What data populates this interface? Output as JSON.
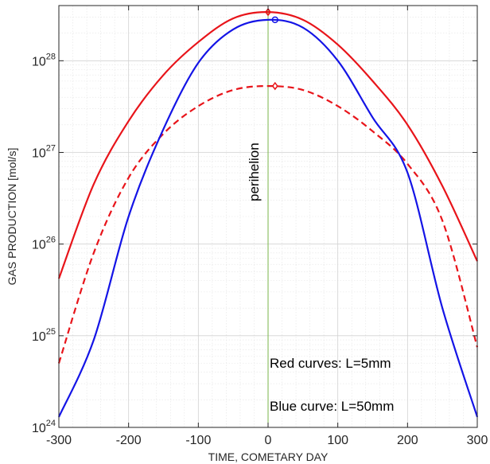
{
  "chart_data": {
    "type": "line",
    "title": "",
    "xlabel": "TIME, COMETARY DAY",
    "ylabel": "GAS PRODUCTION [mol/s]",
    "xlim": [
      -300,
      300
    ],
    "ylim": [
      1e+24,
      4e+28
    ],
    "yscale": "log",
    "grid": true,
    "xticks": [
      -300,
      -200,
      -100,
      0,
      100,
      200,
      300
    ],
    "xtick_labels": [
      "-300",
      "-200",
      "-100",
      "0",
      "100",
      "200",
      "300"
    ],
    "yticks": [
      24,
      25,
      26,
      27,
      28
    ],
    "ytick_base": "10",
    "ytick_exponents": [
      "24",
      "25",
      "26",
      "27",
      "28"
    ],
    "series": [
      {
        "style": "solid",
        "color": "#e8141a",
        "marker": "diamond",
        "marker_at": [
          0,
          3.4e+28
        ],
        "x": [
          -300,
          -250,
          -200,
          -150,
          -100,
          -50,
          0,
          50,
          100,
          150,
          200,
          250,
          300
        ],
        "y": [
          4.2e+25,
          4.5e+26,
          2.2e+27,
          7e+27,
          1.6e+28,
          2.9e+28,
          3.4e+28,
          2.8e+28,
          1.5e+28,
          6e+27,
          2e+27,
          4.3e+26,
          6.5e+25
        ]
      },
      {
        "style": "dashed",
        "color": "#e8141a",
        "marker": "diamond",
        "marker_at": [
          10,
          5.3e+27
        ],
        "x": [
          -300,
          -250,
          -200,
          -150,
          -100,
          -50,
          0,
          50,
          100,
          150,
          200,
          250,
          300
        ],
        "y": [
          5e+24,
          8e+25,
          5.3e+26,
          1.6e+27,
          3.2e+27,
          4.8e+27,
          5.3e+27,
          4.8e+27,
          3.2e+27,
          1.7e+27,
          7.5e+26,
          1.8e+26,
          7.5e+24
        ]
      },
      {
        "style": "solid",
        "color": "#1414e6",
        "marker": "circle",
        "marker_at": [
          10,
          2.8e+28
        ],
        "x": [
          -300,
          -250,
          -200,
          -150,
          -100,
          -50,
          0,
          50,
          100,
          150,
          200,
          250,
          300
        ],
        "y": [
          1.3e+24,
          9e+24,
          2e+26,
          1.8e+27,
          9.5e+27,
          2.2e+28,
          2.8e+28,
          2.3e+28,
          1e+28,
          2.4e+27,
          6e+26,
          2e+25,
          1.3e+24
        ]
      }
    ],
    "vline": {
      "x": 0,
      "color": "#7ab648",
      "label": "perihelion"
    },
    "annotations": [
      "Red curves: L=5mm",
      "Blue curve: L=50mm"
    ]
  }
}
